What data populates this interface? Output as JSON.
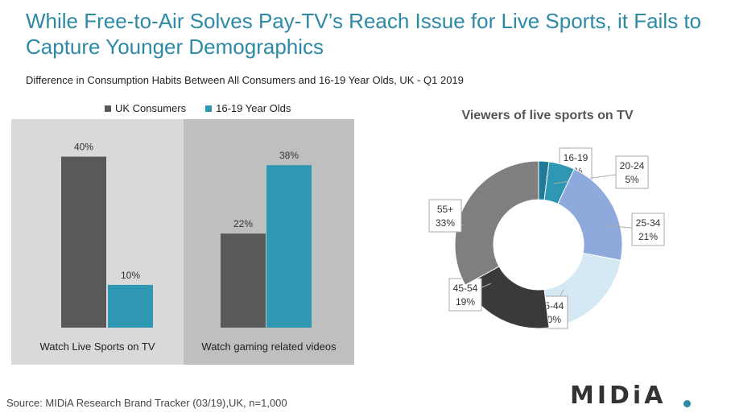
{
  "title": "While Free-to-Air Solves Pay-TV’s Reach Issue for Live Sports, it Fails to Capture Younger Demographics",
  "subtitle": "Difference in Consumption Habits Between All Consumers and 16-19 Year Olds, UK -  Q1 2019",
  "source": "Source: MIDiA Research Brand Tracker (03/19),UK, n=1,000",
  "logo_text": "MIDiA",
  "colors": {
    "accent": "#2c8aa6",
    "uk": "#595959",
    "youth": "#2e97b3"
  },
  "chart_data": [
    {
      "type": "bar",
      "categories": [
        "Watch Live Sports on TV",
        "Watch gaming related videos"
      ],
      "series": [
        {
          "name": "UK Consumers",
          "values": [
            40,
            22
          ],
          "labels": [
            "40%",
            "22%"
          ],
          "color": "#595959"
        },
        {
          "name": "16-19 Year Olds",
          "values": [
            10,
            38
          ],
          "labels": [
            "10%",
            "38%"
          ],
          "color": "#2e97b3"
        }
      ],
      "ylim": [
        0,
        45
      ],
      "legend": "top",
      "grid": false
    },
    {
      "type": "pie",
      "title": "Viewers of live sports on TV",
      "donut": true,
      "slices": [
        {
          "label": "16-19",
          "value": 2,
          "value_label": "2%",
          "color": "#1f7a96"
        },
        {
          "label": "20-24",
          "value": 5,
          "value_label": "5%",
          "color": "#2e97b3"
        },
        {
          "label": "25-34",
          "value": 21,
          "value_label": "21%",
          "color": "#8ea9db"
        },
        {
          "label": "35-44",
          "value": 20,
          "value_label": "20%",
          "color": "#d4e9f3"
        },
        {
          "label": "45-54",
          "value": 19,
          "value_label": "19%",
          "color": "#3a3a3a"
        },
        {
          "label": "55+",
          "value": 33,
          "value_label": "33%",
          "color": "#7f7f7f"
        }
      ]
    }
  ]
}
